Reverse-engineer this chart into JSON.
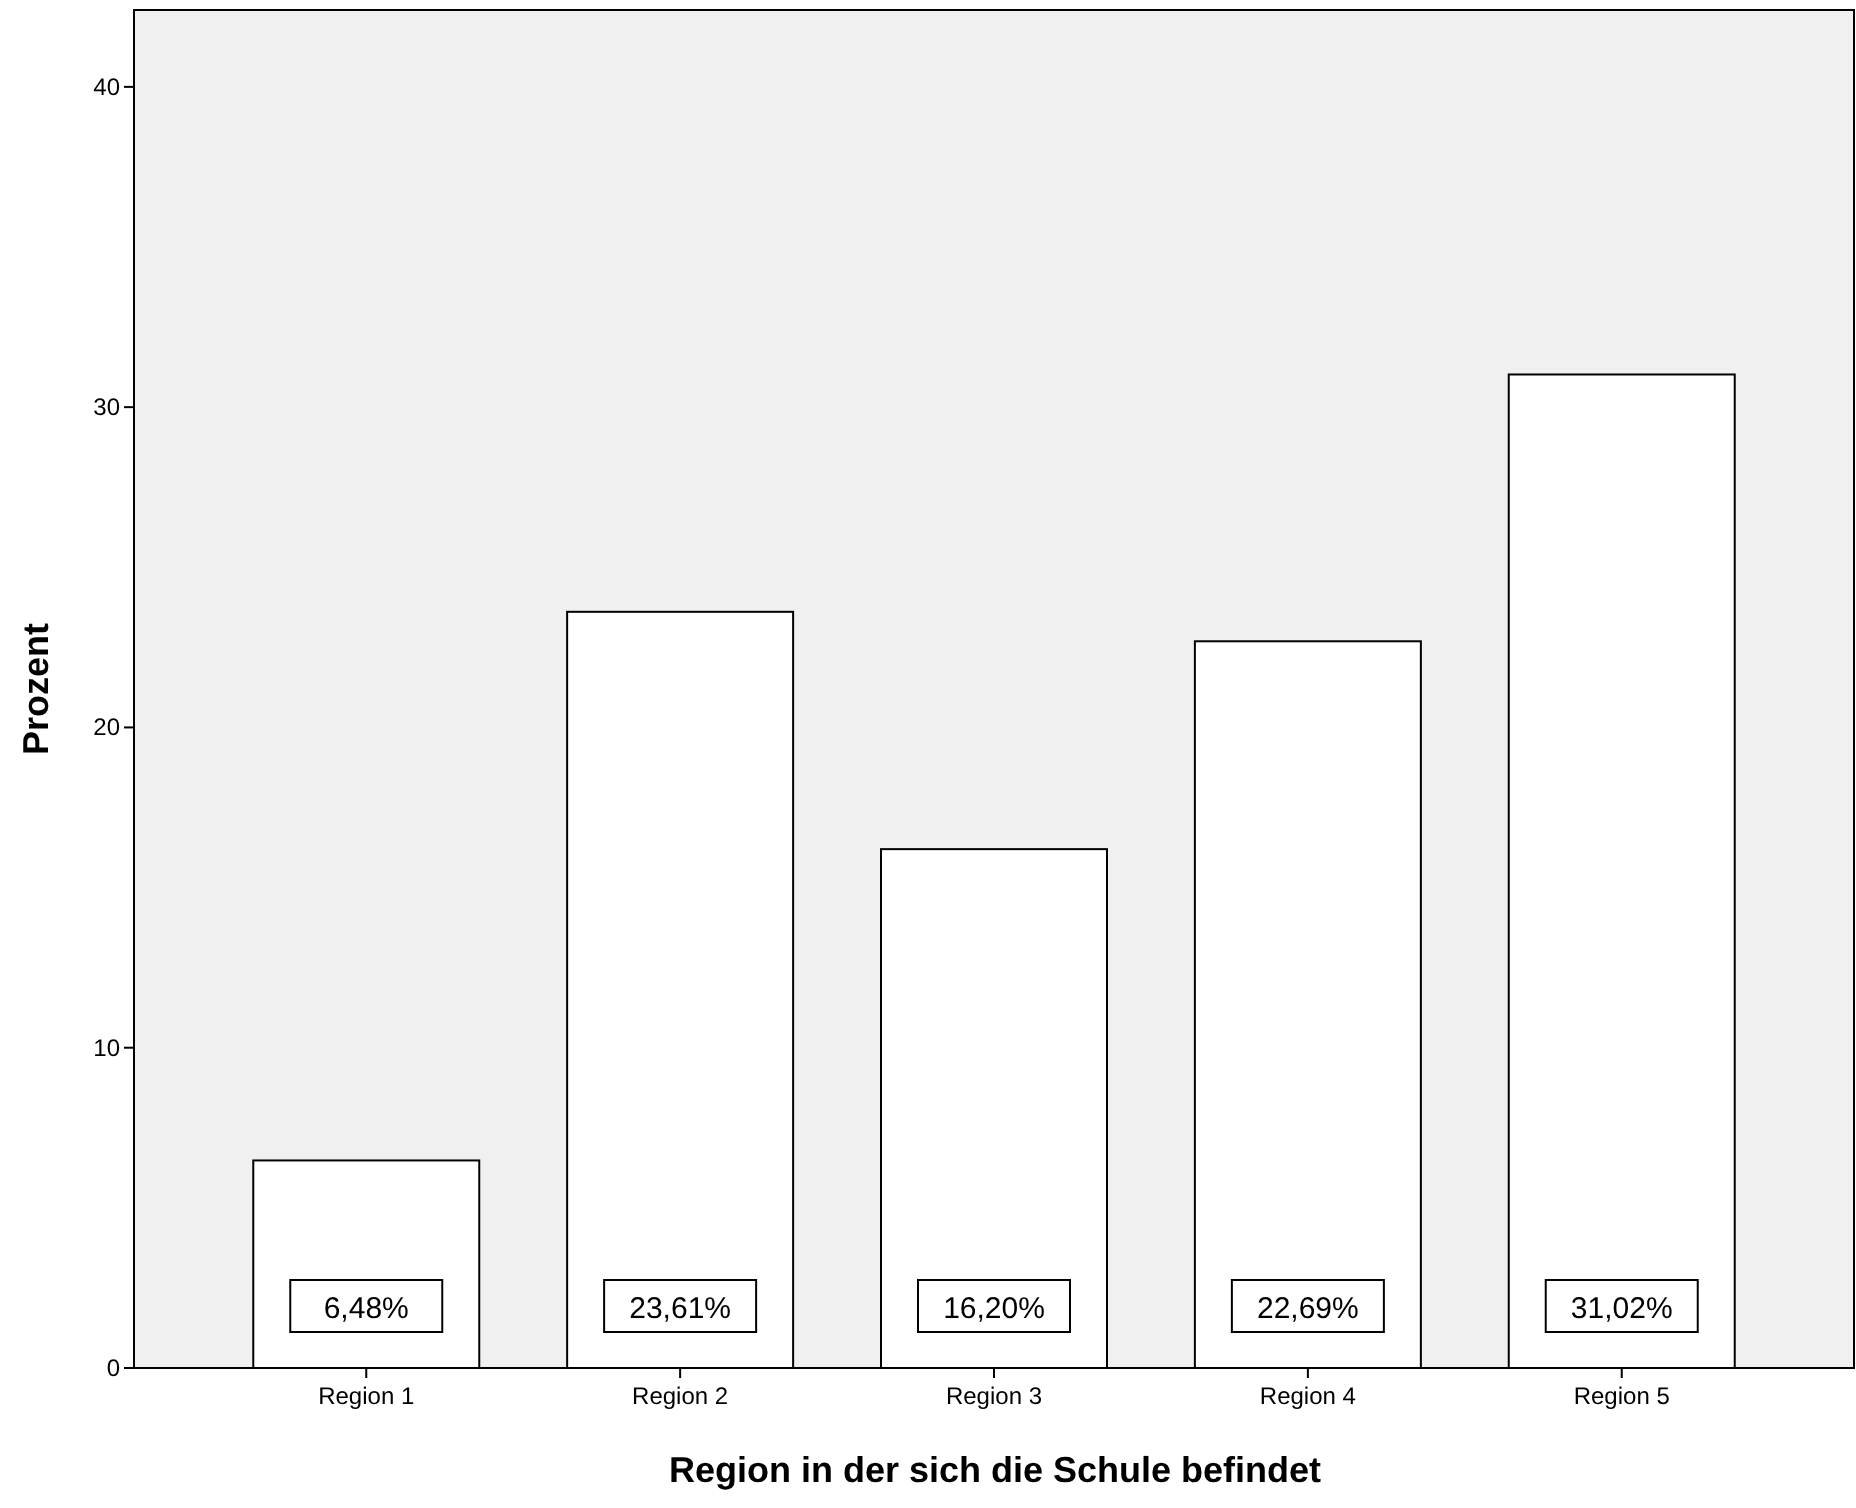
{
  "chart_data": {
    "type": "bar",
    "xlabel": "Region in der sich die Schule befindet",
    "ylabel": "Prozent",
    "categories": [
      "Region 1",
      "Region 2",
      "Region 3",
      "Region 4",
      "Region 5"
    ],
    "values": [
      6.48,
      23.61,
      16.2,
      22.69,
      31.02
    ],
    "value_labels": [
      "6,48%",
      "23,61%",
      "16,20%",
      "22,69%",
      "31,02%"
    ],
    "color": "#ffffff",
    "ylim": [
      0,
      42.4
    ],
    "yticks": [
      0,
      10,
      20,
      30,
      40
    ],
    "grid": false
  }
}
